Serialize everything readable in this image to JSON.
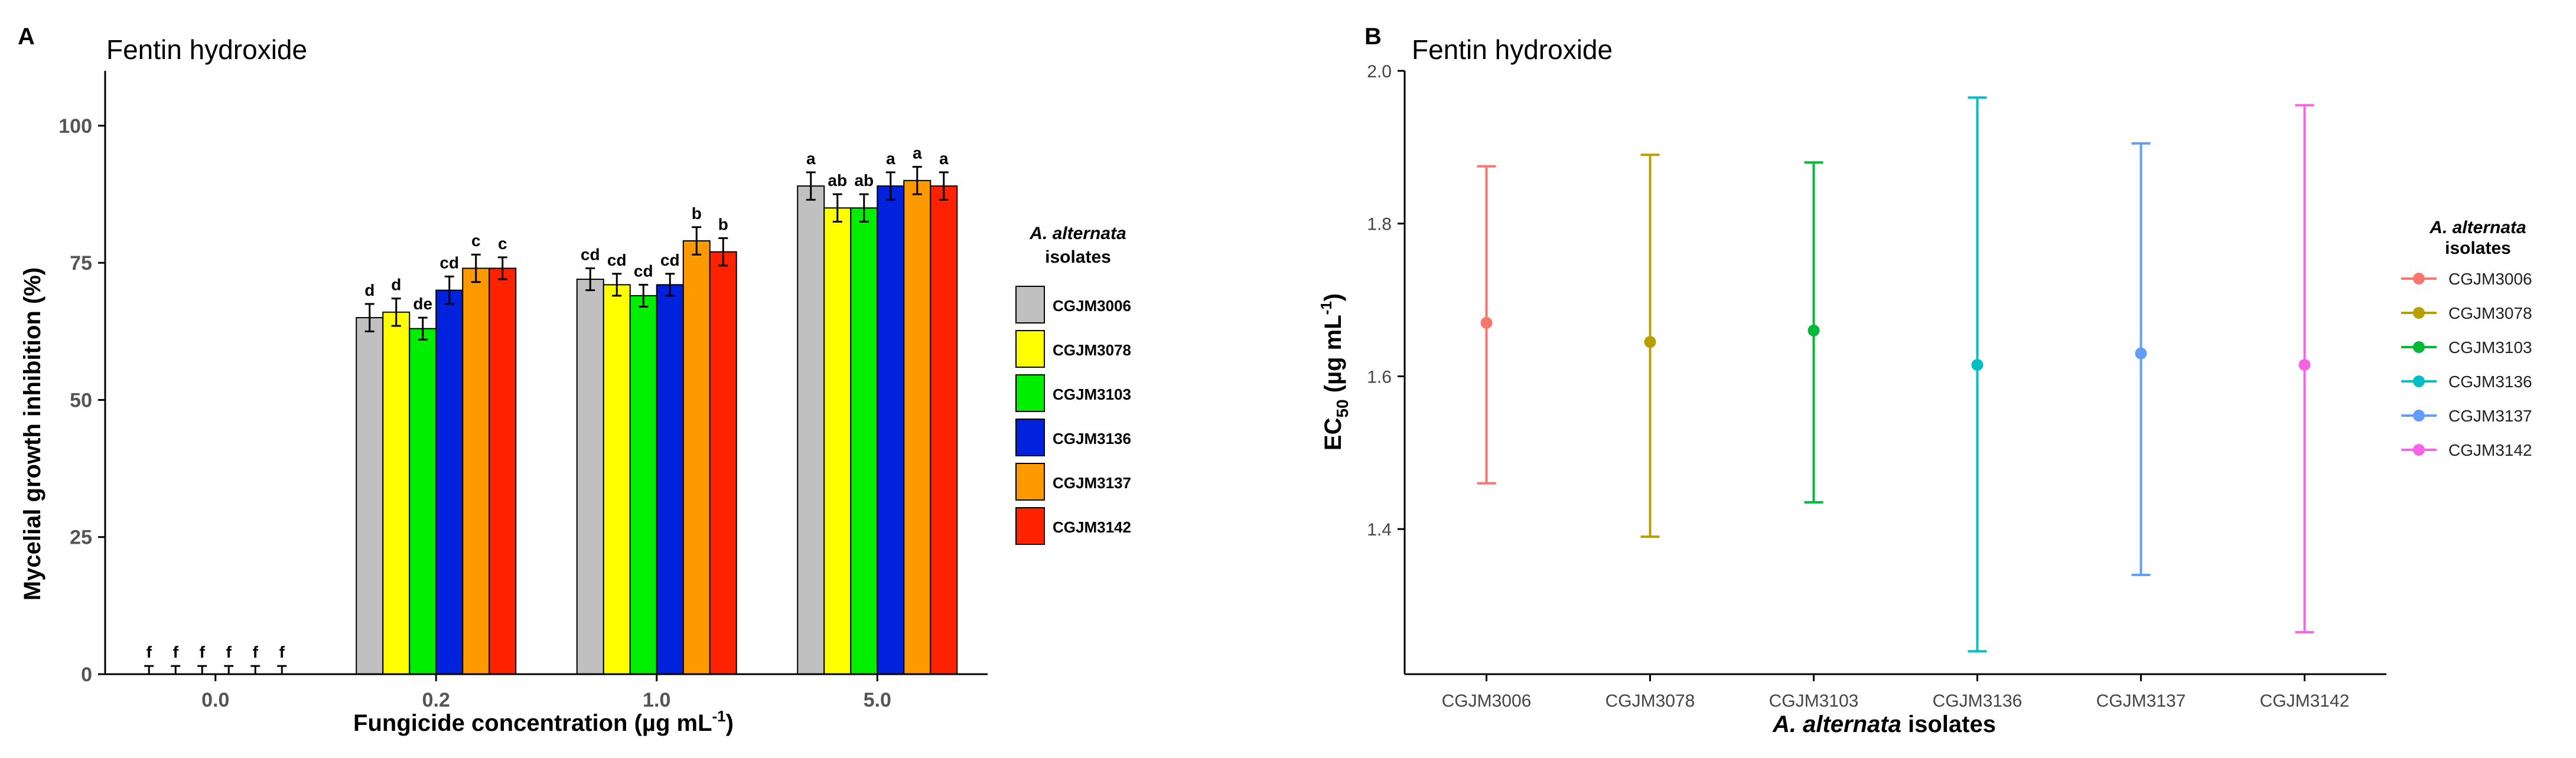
{
  "chart_data": [
    {
      "panel": "A",
      "type": "bar",
      "title": "Fentin hydroxide",
      "xlabel_main": "Fungicide concentration (µg mL",
      "xlabel_sup": "-1",
      "xlabel_end": ")",
      "ylabel": "Mycelial growth inhibition (%)",
      "ylim": [
        0,
        110
      ],
      "yticks": [
        0,
        25,
        50,
        75,
        100
      ],
      "categories": [
        "0.0",
        "0.2",
        "1.0",
        "5.0"
      ],
      "legend_title_italic": "A. alternata",
      "legend_title_rest": "isolates",
      "series": [
        {
          "name": "CGJM3006",
          "color": "#c0c0c0",
          "values": [
            0,
            65,
            72,
            89
          ],
          "errors": [
            1.5,
            2.5,
            2.0,
            2.5
          ],
          "letters": [
            "f",
            "d",
            "cd",
            "a"
          ]
        },
        {
          "name": "CGJM3078",
          "color": "#ffff00",
          "values": [
            0,
            66,
            71,
            85
          ],
          "errors": [
            1.5,
            2.5,
            2.0,
            2.5
          ],
          "letters": [
            "f",
            "d",
            "cd",
            "ab"
          ]
        },
        {
          "name": "CGJM3103",
          "color": "#00ee00",
          "values": [
            0,
            63,
            69,
            85
          ],
          "errors": [
            1.5,
            2.0,
            2.0,
            2.5
          ],
          "letters": [
            "f",
            "de",
            "cd",
            "ab"
          ]
        },
        {
          "name": "CGJM3136",
          "color": "#0022dd",
          "values": [
            0,
            70,
            71,
            89
          ],
          "errors": [
            1.5,
            2.5,
            2.0,
            2.5
          ],
          "letters": [
            "f",
            "cd",
            "cd",
            "a"
          ]
        },
        {
          "name": "CGJM3137",
          "color": "#ff9900",
          "values": [
            0,
            74,
            79,
            90
          ],
          "errors": [
            1.5,
            2.5,
            2.5,
            2.5
          ],
          "letters": [
            "f",
            "c",
            "b",
            "a"
          ]
        },
        {
          "name": "CGJM3142",
          "color": "#ff2200",
          "values": [
            0,
            74,
            77,
            89
          ],
          "errors": [
            1.5,
            2.0,
            2.5,
            2.5
          ],
          "letters": [
            "f",
            "c",
            "b",
            "a"
          ]
        }
      ]
    },
    {
      "panel": "B",
      "type": "scatter",
      "title": "Fentin hydroxide",
      "xlabel_italic": "A. alternata",
      "xlabel_rest": "isolates",
      "ylabel_main": "EC",
      "ylabel_sub": "50",
      "ylabel_units": "(µg mL",
      "ylabel_sup": "-1",
      "ylabel_end": ")",
      "ylim": [
        1.21,
        2.0
      ],
      "yticks": [
        "1.4",
        "1.6",
        "1.8",
        "2.0"
      ],
      "legend_title_italic": "A. alternata",
      "legend_title_rest": "isolates",
      "points": [
        {
          "name": "CGJM3006",
          "color": "#f8766d",
          "value": 1.67,
          "lower": 1.46,
          "upper": 1.875
        },
        {
          "name": "CGJM3078",
          "color": "#b79f00",
          "value": 1.645,
          "lower": 1.39,
          "upper": 1.89
        },
        {
          "name": "CGJM3103",
          "color": "#00ba38",
          "value": 1.66,
          "lower": 1.435,
          "upper": 1.88
        },
        {
          "name": "CGJM3136",
          "color": "#00bfc4",
          "value": 1.615,
          "lower": 1.24,
          "upper": 1.965
        },
        {
          "name": "CGJM3137",
          "color": "#619cff",
          "value": 1.63,
          "lower": 1.34,
          "upper": 1.905
        },
        {
          "name": "CGJM3142",
          "color": "#f564e3",
          "value": 1.615,
          "lower": 1.265,
          "upper": 1.955
        }
      ]
    }
  ],
  "panel_letters": {
    "a": "A",
    "b": "B"
  }
}
